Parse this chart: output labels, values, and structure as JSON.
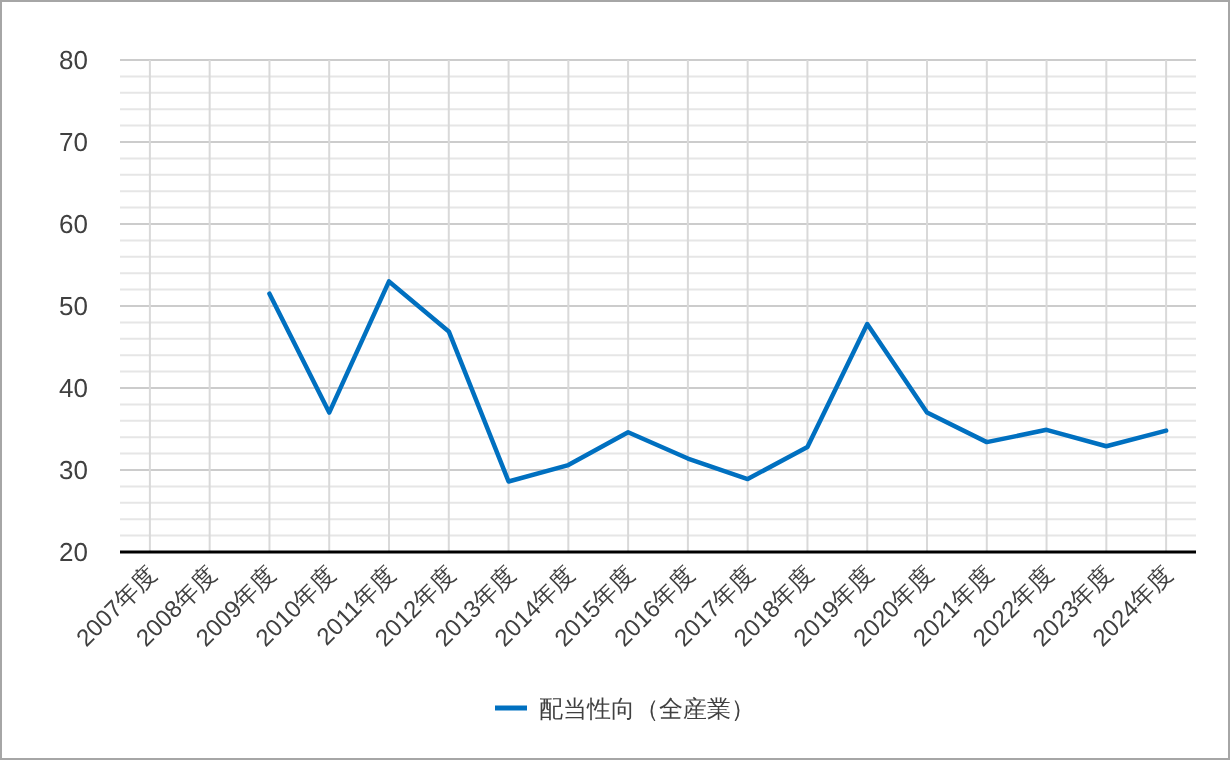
{
  "chart_data": {
    "type": "line",
    "categories": [
      "2007年度",
      "2008年度",
      "2009年度",
      "2010年度",
      "2011年度",
      "2012年度",
      "2013年度",
      "2014年度",
      "2015年度",
      "2016年度",
      "2017年度",
      "2018年度",
      "2019年度",
      "2020年度",
      "2021年度",
      "2022年度",
      "2023年度",
      "2024年度"
    ],
    "series": [
      {
        "name": "配当性向（全産業）",
        "color": "#0070c0",
        "values": [
          null,
          null,
          51.5,
          37.0,
          53.0,
          46.9,
          28.6,
          30.6,
          34.6,
          31.4,
          28.9,
          32.8,
          47.8,
          37.0,
          33.4,
          34.9,
          32.9,
          34.8
        ]
      }
    ],
    "ylim": [
      20,
      80
    ],
    "yticks": [
      20,
      {
        "value": 22,
        "label": null
      },
      {
        "value": 24,
        "label": null
      },
      {
        "value": 26,
        "label": null
      },
      {
        "value": 28,
        "label": null
      },
      30,
      {
        "value": 32,
        "label": null
      },
      {
        "value": 34,
        "label": null
      },
      {
        "value": 36,
        "label": null
      },
      {
        "value": 38,
        "label": null
      },
      40,
      {
        "value": 42,
        "label": null
      },
      {
        "value": 44,
        "label": null
      },
      {
        "value": 46,
        "label": null
      },
      {
        "value": 48,
        "label": null
      },
      50,
      {
        "value": 52,
        "label": null
      },
      {
        "value": 54,
        "label": null
      },
      {
        "value": 56,
        "label": null
      },
      {
        "value": 58,
        "label": null
      },
      60,
      {
        "value": 62,
        "label": null
      },
      {
        "value": 64,
        "label": null
      },
      {
        "value": 66,
        "label": null
      },
      {
        "value": 68,
        "label": null
      },
      70,
      {
        "value": 72,
        "label": null
      },
      {
        "value": 74,
        "label": null
      },
      {
        "value": 76,
        "label": null
      },
      {
        "value": 78,
        "label": null
      },
      80
    ],
    "grid": true,
    "legend": "bottom",
    "marker": "none",
    "line_style": "solid"
  }
}
